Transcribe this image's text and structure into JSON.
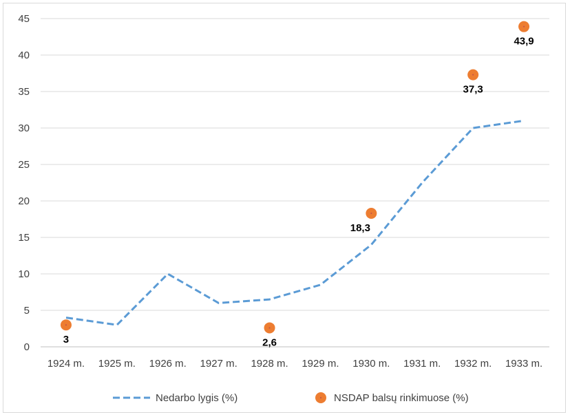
{
  "chart_data": {
    "type": "line",
    "categories": [
      "1924 m.",
      "1925 m.",
      "1926 m.",
      "1927 m.",
      "1928 m.",
      "1929 m.",
      "1930 m.",
      "1931 m.",
      "1932 m.",
      "1933 m."
    ],
    "ylim": [
      0,
      45
    ],
    "yticks": [
      0,
      5,
      10,
      15,
      20,
      25,
      30,
      35,
      40,
      45
    ],
    "grid": true,
    "legend_position": "bottom",
    "series": [
      {
        "name": "Nedarbo lygis (%)",
        "kind": "line",
        "style": "dashed",
        "color": "#5b9bd5",
        "values": [
          4,
          3,
          10,
          6,
          6.5,
          8.5,
          14,
          22.5,
          30,
          31
        ]
      },
      {
        "name": "NSDAP balsų rinkimuose (%)",
        "kind": "scatter",
        "color": "#ed7d31",
        "points": [
          {
            "category": "1924 m.",
            "value": 3,
            "label": "3"
          },
          {
            "category": "1928 m.",
            "value": 2.6,
            "label": "2,6"
          },
          {
            "category": "1930 m.",
            "value": 18.3,
            "label": "18,3"
          },
          {
            "category": "1932 m.",
            "value": 37.3,
            "label": "37,3"
          },
          {
            "category": "1933 m.",
            "value": 43.9,
            "label": "43,9"
          }
        ]
      }
    ]
  }
}
